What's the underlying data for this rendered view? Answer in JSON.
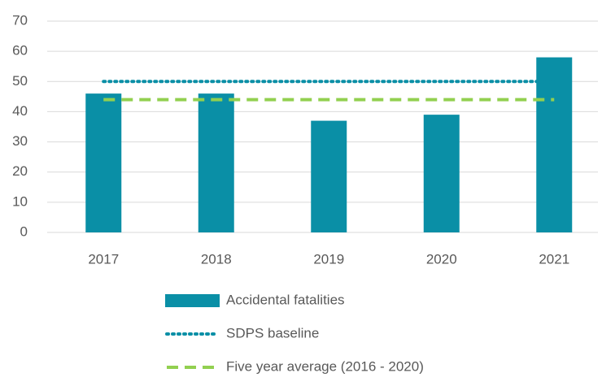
{
  "chart_data": {
    "type": "bar",
    "categories": [
      "2017",
      "2018",
      "2019",
      "2020",
      "2021"
    ],
    "series": [
      {
        "name": "Accidental fatalities",
        "type": "bar",
        "color": "#0a8fa6",
        "values": [
          46,
          46,
          37,
          39,
          58
        ]
      },
      {
        "name": "SDPS baseline",
        "type": "line",
        "style": "dotted",
        "color": "#0a8fa6",
        "values": [
          50,
          50,
          50,
          50,
          50
        ]
      },
      {
        "name": "Five year average (2016 - 2020)",
        "type": "line",
        "style": "dashed",
        "color": "#92d050",
        "values": [
          44,
          44,
          44,
          44,
          44
        ]
      }
    ],
    "ylim": [
      0,
      70
    ],
    "yticks": [
      0,
      10,
      20,
      30,
      40,
      50,
      60,
      70
    ],
    "grid": true,
    "legend": "bottom"
  }
}
